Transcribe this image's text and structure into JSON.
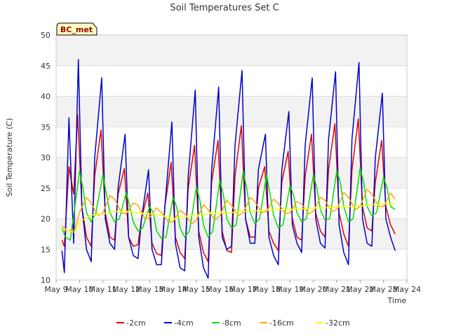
{
  "chart_data": {
    "type": "line",
    "title": "Soil Temperatures Set C",
    "xlabel": "Time",
    "ylabel": "Soil Temperature (C)",
    "badge": "BC_met",
    "ylim": [
      10,
      50
    ],
    "yticks": [
      10,
      15,
      20,
      25,
      30,
      35,
      40,
      45,
      50
    ],
    "xlim": [
      0,
      15
    ],
    "xticks": [
      {
        "x": 0,
        "label": "May 9"
      },
      {
        "x": 1,
        "label": "May 10"
      },
      {
        "x": 2,
        "label": "May 11"
      },
      {
        "x": 3,
        "label": "May 12"
      },
      {
        "x": 4,
        "label": "May 13"
      },
      {
        "x": 5,
        "label": "May 14"
      },
      {
        "x": 6,
        "label": "May 15"
      },
      {
        "x": 7,
        "label": "May 16"
      },
      {
        "x": 8,
        "label": "May 17"
      },
      {
        "x": 9,
        "label": "May 18"
      },
      {
        "x": 10,
        "label": "May 19"
      },
      {
        "x": 11,
        "label": "May 20"
      },
      {
        "x": 12,
        "label": "May 21"
      },
      {
        "x": 13,
        "label": "May 22"
      },
      {
        "x": 14,
        "label": "May 23"
      },
      {
        "x": 15,
        "label": "May 24"
      }
    ],
    "x_offset_from": "May 9",
    "series": [
      {
        "name": "-2cm",
        "color": "#dd0000",
        "x": [
          0.25,
          0.35,
          0.55,
          0.75,
          0.92,
          1.1,
          1.3,
          1.5,
          1.65,
          1.92,
          2.1,
          2.3,
          2.5,
          2.65,
          2.92,
          3.1,
          3.3,
          3.5,
          3.65,
          3.92,
          4.1,
          4.3,
          4.5,
          4.65,
          4.92,
          5.1,
          5.3,
          5.5,
          5.65,
          5.92,
          6.1,
          6.3,
          6.5,
          6.65,
          6.92,
          7.1,
          7.3,
          7.5,
          7.65,
          7.92,
          8.1,
          8.3,
          8.5,
          8.65,
          8.92,
          9.1,
          9.3,
          9.5,
          9.65,
          9.92,
          10.1,
          10.3,
          10.5,
          10.65,
          10.92,
          11.1,
          11.3,
          11.5,
          11.65,
          11.92,
          12.1,
          12.3,
          12.5,
          12.65,
          12.92,
          13.1,
          13.3,
          13.5,
          13.65,
          13.92,
          14.1,
          14.3,
          14.5
        ],
        "y": [
          16.5,
          15.5,
          28.5,
          24,
          37,
          22,
          17,
          15.5,
          27,
          34.5,
          21,
          17,
          16.5,
          24,
          28.2,
          17,
          15.5,
          15.8,
          20,
          24.2,
          16,
          14.3,
          14,
          22,
          29.2,
          17,
          14.5,
          13.5,
          25,
          32,
          18,
          14.5,
          13,
          26,
          32.8,
          18,
          14.8,
          14.5,
          27,
          35.2,
          20,
          17,
          17,
          25,
          28.5,
          18,
          16,
          14.8,
          26,
          31,
          20,
          17,
          16.5,
          27,
          33.8,
          21,
          18,
          17,
          28,
          35.5,
          21,
          17.5,
          15.5,
          28,
          36.3,
          22,
          18.5,
          18,
          26,
          32.8,
          22,
          19,
          17.5
        ]
      },
      {
        "name": "-4cm",
        "color": "#0000cc",
        "x": [
          0.25,
          0.35,
          0.55,
          0.75,
          0.95,
          1.1,
          1.3,
          1.5,
          1.65,
          1.95,
          2.1,
          2.3,
          2.5,
          2.65,
          2.95,
          3.1,
          3.3,
          3.5,
          3.65,
          3.95,
          4.1,
          4.3,
          4.5,
          4.65,
          4.95,
          5.1,
          5.3,
          5.5,
          5.65,
          5.95,
          6.1,
          6.3,
          6.5,
          6.65,
          6.95,
          7.1,
          7.3,
          7.5,
          7.65,
          7.95,
          8.1,
          8.3,
          8.5,
          8.65,
          8.95,
          9.1,
          9.3,
          9.5,
          9.65,
          9.95,
          10.1,
          10.3,
          10.5,
          10.65,
          10.95,
          11.1,
          11.3,
          11.5,
          11.65,
          11.95,
          12.1,
          12.3,
          12.5,
          12.65,
          12.95,
          13.1,
          13.3,
          13.5,
          13.65,
          13.95,
          14.1,
          14.3,
          14.5
        ],
        "y": [
          14.8,
          11.2,
          36.5,
          16,
          46,
          22,
          15,
          13,
          30,
          43,
          20,
          16,
          15,
          25,
          33.8,
          17,
          14,
          13.5,
          20,
          28,
          15,
          12.5,
          12.5,
          22,
          35.8,
          16,
          12,
          11.5,
          27,
          41,
          17,
          12,
          10.3,
          28,
          41.5,
          17,
          15,
          15.5,
          32,
          44.2,
          20,
          16,
          16,
          28,
          33.8,
          17,
          14,
          12.5,
          28,
          37.5,
          19,
          16,
          14.5,
          32,
          43,
          20,
          16,
          15.2,
          33,
          44,
          19,
          14.5,
          12.5,
          33,
          45.5,
          20,
          16,
          15.5,
          30,
          40.5,
          20,
          17,
          14.8
        ]
      },
      {
        "name": "-8cm",
        "color": "#00dd00",
        "x": [
          0.25,
          0.4,
          0.6,
          0.8,
          1.0,
          1.15,
          1.3,
          1.5,
          1.7,
          2.0,
          2.15,
          2.3,
          2.5,
          2.7,
          3.0,
          3.15,
          3.3,
          3.5,
          3.7,
          4.0,
          4.15,
          4.3,
          4.5,
          4.7,
          5.0,
          5.15,
          5.3,
          5.5,
          5.7,
          6.0,
          6.15,
          6.3,
          6.5,
          6.7,
          7.0,
          7.15,
          7.3,
          7.5,
          7.7,
          8.0,
          8.15,
          8.3,
          8.5,
          8.7,
          9.0,
          9.15,
          9.3,
          9.5,
          9.7,
          10.0,
          10.15,
          10.3,
          10.5,
          10.7,
          11.0,
          11.15,
          11.3,
          11.5,
          11.7,
          12.0,
          12.15,
          12.3,
          12.5,
          12.7,
          13.0,
          13.15,
          13.3,
          13.5,
          13.7,
          14.0,
          14.15,
          14.3,
          14.5
        ],
        "y": [
          18.5,
          17,
          16.5,
          22,
          27.8,
          25,
          21,
          19.5,
          21,
          27.2,
          24,
          21,
          19.5,
          20,
          24.3,
          22,
          19.5,
          18,
          18.5,
          22,
          21,
          18,
          16.8,
          17,
          23.5,
          22,
          18.5,
          17,
          18,
          25.2,
          23,
          19,
          17,
          18,
          26.3,
          24,
          20,
          18.5,
          19,
          27.7,
          25,
          21,
          19.2,
          20,
          27.2,
          24,
          20.5,
          18.5,
          19,
          25.4,
          24,
          21,
          19.5,
          20,
          27.2,
          25,
          21.5,
          19.8,
          20,
          27.8,
          26,
          22,
          19.5,
          20,
          28.3,
          26,
          22,
          20.5,
          21,
          26.8,
          25,
          22,
          21.5
        ]
      },
      {
        "name": "-16cm",
        "color": "#ffa500",
        "x": [
          0.25,
          0.5,
          0.8,
          1.0,
          1.3,
          1.5,
          1.8,
          2.0,
          2.3,
          2.5,
          2.8,
          3.0,
          3.3,
          3.5,
          3.8,
          4.0,
          4.3,
          4.5,
          4.8,
          5.0,
          5.3,
          5.5,
          5.8,
          6.0,
          6.3,
          6.5,
          6.8,
          7.0,
          7.3,
          7.5,
          7.8,
          8.0,
          8.3,
          8.5,
          8.8,
          9.0,
          9.3,
          9.5,
          9.8,
          10.0,
          10.3,
          10.5,
          10.8,
          11.0,
          11.3,
          11.5,
          11.8,
          12.0,
          12.3,
          12.5,
          12.8,
          13.0,
          13.3,
          13.5,
          13.8,
          14.0,
          14.3,
          14.5
        ],
        "y": [
          18.8,
          18,
          18.2,
          21,
          23.5,
          22.5,
          20.5,
          21,
          23.8,
          23.2,
          21,
          20.8,
          22.6,
          22.2,
          20,
          20.2,
          21.8,
          21,
          19.5,
          19.5,
          21.4,
          20.8,
          19.2,
          19.8,
          22.3,
          21.5,
          19.8,
          20.5,
          23,
          22.2,
          20.5,
          21,
          23.5,
          22.8,
          21,
          21.2,
          23.2,
          22.5,
          20.8,
          21,
          22.8,
          22.4,
          20.8,
          21.2,
          23.5,
          23,
          21.2,
          21.5,
          24.3,
          23.5,
          21.5,
          22,
          24.8,
          24,
          22,
          22,
          24.2,
          23.2
        ]
      },
      {
        "name": "-32cm",
        "color": "#ffff00",
        "x": [
          0.25,
          0.5,
          0.8,
          1.0,
          1.5,
          2.0,
          2.5,
          3.0,
          3.5,
          4.0,
          4.5,
          5.0,
          5.5,
          6.0,
          6.5,
          7.0,
          7.5,
          8.0,
          8.5,
          9.0,
          9.5,
          10.0,
          10.5,
          11.0,
          11.5,
          12.0,
          12.5,
          13.0,
          13.5,
          14.0,
          14.5
        ],
        "y": [
          18.5,
          18,
          17.8,
          19.5,
          20.6,
          20.8,
          21.2,
          21.2,
          21.0,
          20.8,
          20.6,
          20.0,
          20.4,
          20.6,
          20.8,
          20.9,
          21.0,
          21.2,
          21.3,
          21.4,
          21.5,
          21.5,
          21.6,
          21.7,
          21.8,
          21.9,
          22.0,
          22.1,
          22.3,
          22.4,
          22.5
        ]
      }
    ],
    "legend_placement": "bottom-center",
    "grid": "horizontal bands"
  }
}
